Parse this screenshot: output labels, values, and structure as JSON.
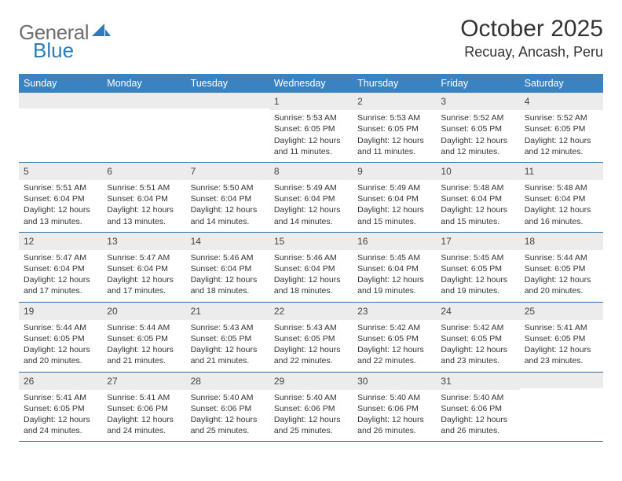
{
  "brand": {
    "part1": "General",
    "part2": "Blue"
  },
  "title": "October 2025",
  "location": "Recuay, Ancash, Peru",
  "weekdays": [
    "Sunday",
    "Monday",
    "Tuesday",
    "Wednesday",
    "Thursday",
    "Friday",
    "Saturday"
  ],
  "colors": {
    "header_bar": "#3b83c0",
    "day_bar": "#ececec",
    "row_border": "#2b6ca3",
    "logo_gray": "#6f6f6f",
    "logo_blue": "#2b7bbf"
  },
  "weeks": [
    [
      {
        "n": "",
        "sr": "",
        "ss": "",
        "dl": ""
      },
      {
        "n": "",
        "sr": "",
        "ss": "",
        "dl": ""
      },
      {
        "n": "",
        "sr": "",
        "ss": "",
        "dl": ""
      },
      {
        "n": "1",
        "sr": "5:53 AM",
        "ss": "6:05 PM",
        "dl": "12 hours and 11 minutes."
      },
      {
        "n": "2",
        "sr": "5:53 AM",
        "ss": "6:05 PM",
        "dl": "12 hours and 11 minutes."
      },
      {
        "n": "3",
        "sr": "5:52 AM",
        "ss": "6:05 PM",
        "dl": "12 hours and 12 minutes."
      },
      {
        "n": "4",
        "sr": "5:52 AM",
        "ss": "6:05 PM",
        "dl": "12 hours and 12 minutes."
      }
    ],
    [
      {
        "n": "5",
        "sr": "5:51 AM",
        "ss": "6:04 PM",
        "dl": "12 hours and 13 minutes."
      },
      {
        "n": "6",
        "sr": "5:51 AM",
        "ss": "6:04 PM",
        "dl": "12 hours and 13 minutes."
      },
      {
        "n": "7",
        "sr": "5:50 AM",
        "ss": "6:04 PM",
        "dl": "12 hours and 14 minutes."
      },
      {
        "n": "8",
        "sr": "5:49 AM",
        "ss": "6:04 PM",
        "dl": "12 hours and 14 minutes."
      },
      {
        "n": "9",
        "sr": "5:49 AM",
        "ss": "6:04 PM",
        "dl": "12 hours and 15 minutes."
      },
      {
        "n": "10",
        "sr": "5:48 AM",
        "ss": "6:04 PM",
        "dl": "12 hours and 15 minutes."
      },
      {
        "n": "11",
        "sr": "5:48 AM",
        "ss": "6:04 PM",
        "dl": "12 hours and 16 minutes."
      }
    ],
    [
      {
        "n": "12",
        "sr": "5:47 AM",
        "ss": "6:04 PM",
        "dl": "12 hours and 17 minutes."
      },
      {
        "n": "13",
        "sr": "5:47 AM",
        "ss": "6:04 PM",
        "dl": "12 hours and 17 minutes."
      },
      {
        "n": "14",
        "sr": "5:46 AM",
        "ss": "6:04 PM",
        "dl": "12 hours and 18 minutes."
      },
      {
        "n": "15",
        "sr": "5:46 AM",
        "ss": "6:04 PM",
        "dl": "12 hours and 18 minutes."
      },
      {
        "n": "16",
        "sr": "5:45 AM",
        "ss": "6:04 PM",
        "dl": "12 hours and 19 minutes."
      },
      {
        "n": "17",
        "sr": "5:45 AM",
        "ss": "6:05 PM",
        "dl": "12 hours and 19 minutes."
      },
      {
        "n": "18",
        "sr": "5:44 AM",
        "ss": "6:05 PM",
        "dl": "12 hours and 20 minutes."
      }
    ],
    [
      {
        "n": "19",
        "sr": "5:44 AM",
        "ss": "6:05 PM",
        "dl": "12 hours and 20 minutes."
      },
      {
        "n": "20",
        "sr": "5:44 AM",
        "ss": "6:05 PM",
        "dl": "12 hours and 21 minutes."
      },
      {
        "n": "21",
        "sr": "5:43 AM",
        "ss": "6:05 PM",
        "dl": "12 hours and 21 minutes."
      },
      {
        "n": "22",
        "sr": "5:43 AM",
        "ss": "6:05 PM",
        "dl": "12 hours and 22 minutes."
      },
      {
        "n": "23",
        "sr": "5:42 AM",
        "ss": "6:05 PM",
        "dl": "12 hours and 22 minutes."
      },
      {
        "n": "24",
        "sr": "5:42 AM",
        "ss": "6:05 PM",
        "dl": "12 hours and 23 minutes."
      },
      {
        "n": "25",
        "sr": "5:41 AM",
        "ss": "6:05 PM",
        "dl": "12 hours and 23 minutes."
      }
    ],
    [
      {
        "n": "26",
        "sr": "5:41 AM",
        "ss": "6:05 PM",
        "dl": "12 hours and 24 minutes."
      },
      {
        "n": "27",
        "sr": "5:41 AM",
        "ss": "6:06 PM",
        "dl": "12 hours and 24 minutes."
      },
      {
        "n": "28",
        "sr": "5:40 AM",
        "ss": "6:06 PM",
        "dl": "12 hours and 25 minutes."
      },
      {
        "n": "29",
        "sr": "5:40 AM",
        "ss": "6:06 PM",
        "dl": "12 hours and 25 minutes."
      },
      {
        "n": "30",
        "sr": "5:40 AM",
        "ss": "6:06 PM",
        "dl": "12 hours and 26 minutes."
      },
      {
        "n": "31",
        "sr": "5:40 AM",
        "ss": "6:06 PM",
        "dl": "12 hours and 26 minutes."
      },
      {
        "n": "",
        "sr": "",
        "ss": "",
        "dl": ""
      }
    ]
  ],
  "labels": {
    "sunrise": "Sunrise:",
    "sunset": "Sunset:",
    "daylight": "Daylight:"
  }
}
